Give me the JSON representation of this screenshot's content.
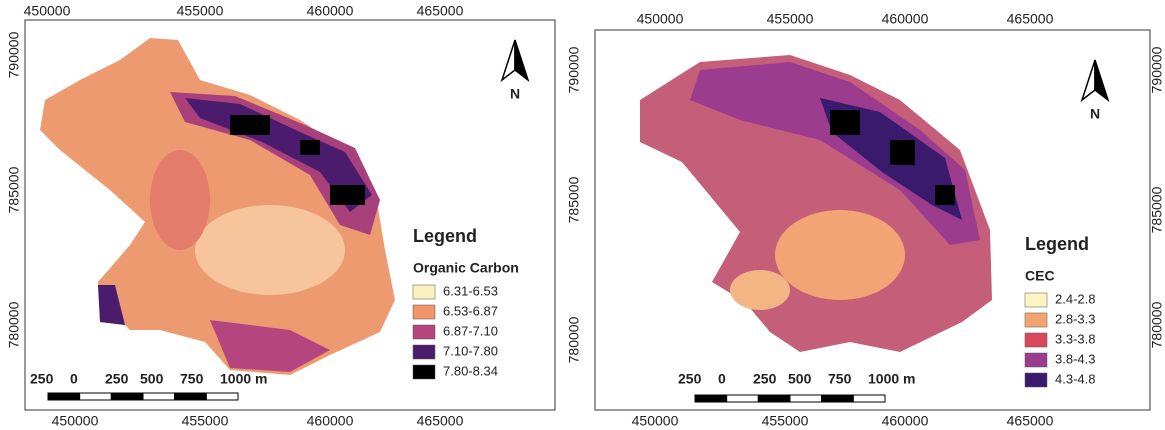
{
  "panels": [
    {
      "x_top_labels": [
        "450000",
        "455000",
        "460000",
        "465000"
      ],
      "x_bottom_labels": [
        "450000",
        "455000",
        "460000",
        "465000"
      ],
      "y_left_labels": [
        "790000",
        "785000",
        "780000"
      ],
      "north": "N",
      "legend": {
        "title": "Legend",
        "subtitle": "Organic Carbon",
        "items": [
          {
            "label": "6.31-6.53",
            "color": "#fbf1bf"
          },
          {
            "label": "6.53-6.87",
            "color": "#f0946a"
          },
          {
            "label": "6.87-7.10",
            "color": "#b5457e"
          },
          {
            "label": "7.10-7.80",
            "color": "#4b1b6e"
          },
          {
            "label": "7.80-8.34",
            "color": "#000000"
          }
        ]
      },
      "scale_labels": [
        "250",
        "0",
        "250",
        "500",
        "750",
        "1000 m"
      ]
    },
    {
      "x_top_labels": [
        "450000",
        "455000",
        "460000",
        "465000"
      ],
      "x_bottom_labels": [
        "450000",
        "455000",
        "460000",
        "465000"
      ],
      "y_left_labels": [
        "790000",
        "785000",
        "780000"
      ],
      "y_right_labels": [
        "790000",
        "785000",
        "780000"
      ],
      "north": "N",
      "legend": {
        "title": "Legend",
        "subtitle": "CEC",
        "items": [
          {
            "label": "2.4-2.8",
            "color": "#fcf5c2"
          },
          {
            "label": "2.8-3.3",
            "color": "#f4a472"
          },
          {
            "label": "3.3-3.8",
            "color": "#d9475b"
          },
          {
            "label": "3.8-4.3",
            "color": "#9c3c8f"
          },
          {
            "label": "4.3-4.8",
            "color": "#3a1a6c"
          }
        ]
      },
      "scale_labels": [
        "250",
        "0",
        "250",
        "500",
        "750",
        "1000 m"
      ]
    }
  ]
}
